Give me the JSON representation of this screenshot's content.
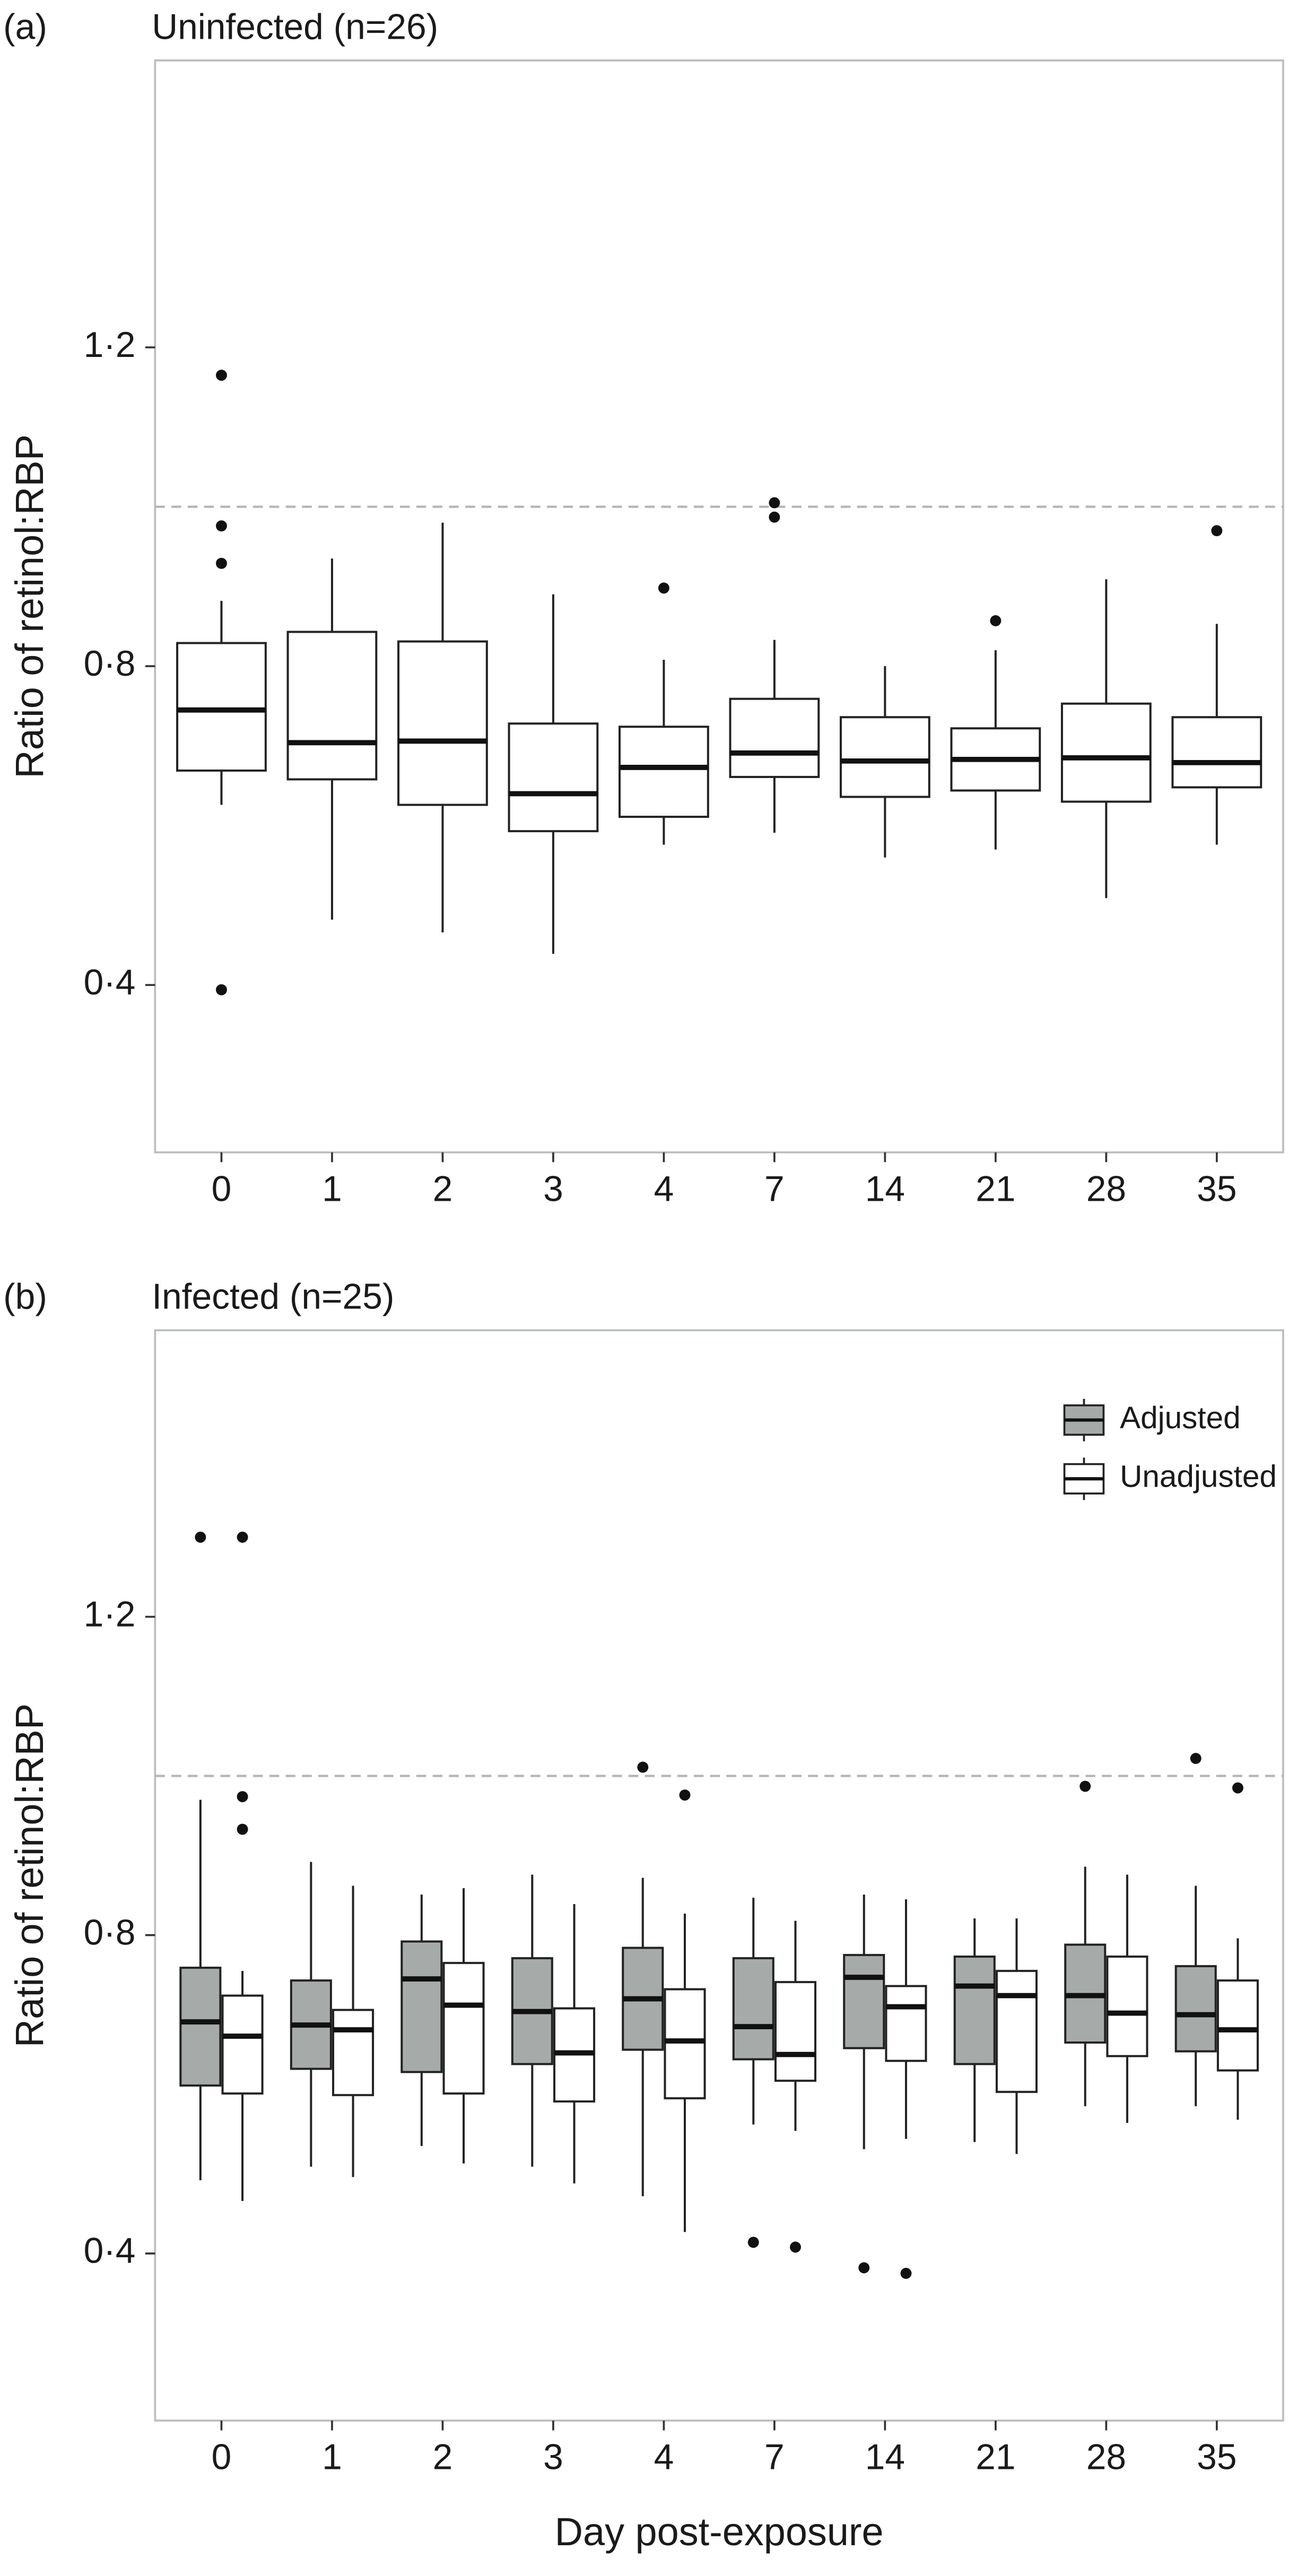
{
  "chart_data": [
    {
      "type": "box",
      "panel_label": "(a)",
      "title": "Uninfected (n=26)",
      "ylabel": "Ratio of retinol:RBP",
      "categories": [
        "0",
        "1",
        "2",
        "3",
        "4",
        "7",
        "14",
        "21",
        "28",
        "35"
      ],
      "ylim": [
        0.19,
        1.56
      ],
      "yticks": [
        {
          "value": 0.4,
          "label": "0·4"
        },
        {
          "value": 0.8,
          "label": "0·8"
        },
        {
          "value": 1.2,
          "label": "1·2"
        }
      ],
      "reference_line": 1.0,
      "grid": false,
      "series": [
        {
          "color": "#ffffff",
          "boxes": [
            {
              "lower_whisker": 0.626,
              "q1": 0.669,
              "median": 0.745,
              "q3": 0.829,
              "upper_whisker": 0.882,
              "outliers": [
                1.165,
                0.976,
                0.929,
                0.394
              ]
            },
            {
              "lower_whisker": 0.482,
              "q1": 0.658,
              "median": 0.704,
              "q3": 0.843,
              "upper_whisker": 0.935,
              "outliers": []
            },
            {
              "lower_whisker": 0.466,
              "q1": 0.626,
              "median": 0.706,
              "q3": 0.831,
              "upper_whisker": 0.98,
              "outliers": []
            },
            {
              "lower_whisker": 0.439,
              "q1": 0.593,
              "median": 0.64,
              "q3": 0.728,
              "upper_whisker": 0.89,
              "outliers": []
            },
            {
              "lower_whisker": 0.576,
              "q1": 0.611,
              "median": 0.673,
              "q3": 0.724,
              "upper_whisker": 0.808,
              "outliers": [
                0.898
              ]
            },
            {
              "lower_whisker": 0.591,
              "q1": 0.661,
              "median": 0.691,
              "q3": 0.759,
              "upper_whisker": 0.833,
              "outliers": [
                1.005,
                0.987
              ]
            },
            {
              "lower_whisker": 0.56,
              "q1": 0.636,
              "median": 0.681,
              "q3": 0.736,
              "upper_whisker": 0.8,
              "outliers": []
            },
            {
              "lower_whisker": 0.57,
              "q1": 0.644,
              "median": 0.683,
              "q3": 0.722,
              "upper_whisker": 0.82,
              "outliers": [
                0.857
              ]
            },
            {
              "lower_whisker": 0.509,
              "q1": 0.63,
              "median": 0.685,
              "q3": 0.753,
              "upper_whisker": 0.909,
              "outliers": []
            },
            {
              "lower_whisker": 0.576,
              "q1": 0.648,
              "median": 0.679,
              "q3": 0.736,
              "upper_whisker": 0.853,
              "outliers": [
                0.97
              ]
            }
          ]
        }
      ]
    },
    {
      "type": "box",
      "panel_label": "(b)",
      "title": "Infected (n=25)",
      "ylabel": "Ratio of retinol:RBP",
      "xlabel": "Day post-exposure",
      "categories": [
        "0",
        "1",
        "2",
        "3",
        "4",
        "7",
        "14",
        "21",
        "28",
        "35"
      ],
      "ylim": [
        0.19,
        1.56
      ],
      "yticks": [
        {
          "value": 0.4,
          "label": "0·4"
        },
        {
          "value": 0.8,
          "label": "0·8"
        },
        {
          "value": 1.2,
          "label": "1·2"
        }
      ],
      "reference_line": 1.0,
      "grid": false,
      "legend": "top-right",
      "series": [
        {
          "name": "Adjusted",
          "color": "#a6abaa",
          "boxes": [
            {
              "lower_whisker": 0.492,
              "q1": 0.611,
              "median": 0.691,
              "q3": 0.759,
              "upper_whisker": 0.97,
              "outliers": [
                1.3
              ]
            },
            {
              "lower_whisker": 0.509,
              "q1": 0.632,
              "median": 0.687,
              "q3": 0.743,
              "upper_whisker": 0.892,
              "outliers": []
            },
            {
              "lower_whisker": 0.535,
              "q1": 0.628,
              "median": 0.745,
              "q3": 0.792,
              "upper_whisker": 0.851,
              "outliers": []
            },
            {
              "lower_whisker": 0.509,
              "q1": 0.638,
              "median": 0.704,
              "q3": 0.771,
              "upper_whisker": 0.876,
              "outliers": []
            },
            {
              "lower_whisker": 0.472,
              "q1": 0.656,
              "median": 0.72,
              "q3": 0.784,
              "upper_whisker": 0.872,
              "outliers": [
                1.011
              ]
            },
            {
              "lower_whisker": 0.562,
              "q1": 0.644,
              "median": 0.685,
              "q3": 0.771,
              "upper_whisker": 0.847,
              "outliers": [
                0.414
              ]
            },
            {
              "lower_whisker": 0.531,
              "q1": 0.658,
              "median": 0.747,
              "q3": 0.775,
              "upper_whisker": 0.851,
              "outliers": [
                0.382
              ]
            },
            {
              "lower_whisker": 0.54,
              "q1": 0.638,
              "median": 0.736,
              "q3": 0.773,
              "upper_whisker": 0.821,
              "outliers": []
            },
            {
              "lower_whisker": 0.585,
              "q1": 0.665,
              "median": 0.724,
              "q3": 0.788,
              "upper_whisker": 0.886,
              "outliers": [
                0.987
              ]
            },
            {
              "lower_whisker": 0.585,
              "q1": 0.654,
              "median": 0.7,
              "q3": 0.761,
              "upper_whisker": 0.862,
              "outliers": [
                1.022
              ]
            }
          ]
        },
        {
          "name": "Unadjusted",
          "color": "#ffffff",
          "boxes": [
            {
              "lower_whisker": 0.466,
              "q1": 0.601,
              "median": 0.673,
              "q3": 0.724,
              "upper_whisker": 0.755,
              "outliers": [
                1.3,
                0.974,
                0.933
              ]
            },
            {
              "lower_whisker": 0.496,
              "q1": 0.599,
              "median": 0.681,
              "q3": 0.706,
              "upper_whisker": 0.862,
              "outliers": []
            },
            {
              "lower_whisker": 0.513,
              "q1": 0.601,
              "median": 0.712,
              "q3": 0.765,
              "upper_whisker": 0.859,
              "outliers": []
            },
            {
              "lower_whisker": 0.488,
              "q1": 0.591,
              "median": 0.652,
              "q3": 0.708,
              "upper_whisker": 0.839,
              "outliers": []
            },
            {
              "lower_whisker": 0.427,
              "q1": 0.595,
              "median": 0.667,
              "q3": 0.732,
              "upper_whisker": 0.827,
              "outliers": [
                0.976
              ]
            },
            {
              "lower_whisker": 0.554,
              "q1": 0.617,
              "median": 0.65,
              "q3": 0.741,
              "upper_whisker": 0.818,
              "outliers": [
                0.408
              ]
            },
            {
              "lower_whisker": 0.544,
              "q1": 0.642,
              "median": 0.71,
              "q3": 0.736,
              "upper_whisker": 0.845,
              "outliers": [
                0.375
              ]
            },
            {
              "lower_whisker": 0.525,
              "q1": 0.603,
              "median": 0.724,
              "q3": 0.755,
              "upper_whisker": 0.821,
              "outliers": []
            },
            {
              "lower_whisker": 0.564,
              "q1": 0.648,
              "median": 0.702,
              "q3": 0.773,
              "upper_whisker": 0.876,
              "outliers": []
            },
            {
              "lower_whisker": 0.568,
              "q1": 0.63,
              "median": 0.681,
              "q3": 0.743,
              "upper_whisker": 0.796,
              "outliers": [
                0.985
              ]
            }
          ]
        }
      ]
    }
  ]
}
